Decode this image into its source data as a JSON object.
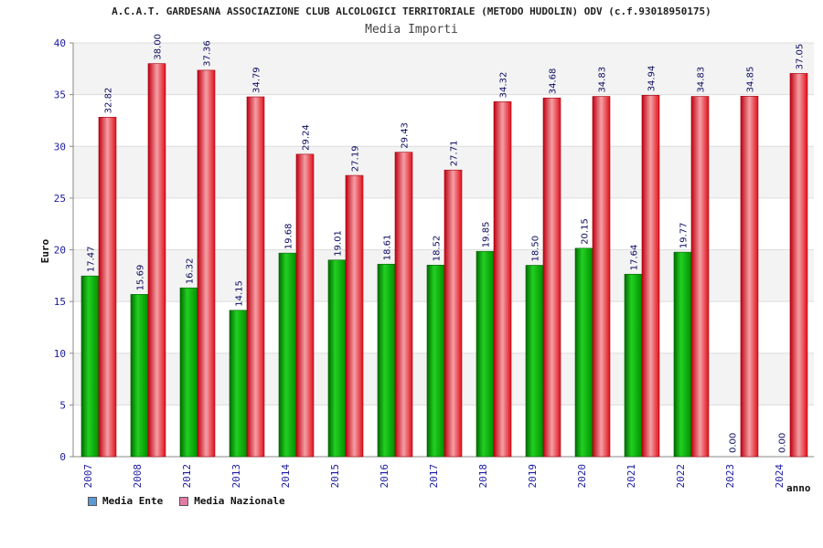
{
  "header": {
    "title": "A.C.A.T. GARDESANA ASSOCIAZIONE CLUB ALCOLOGICI TERRITORIALE (METODO HUDOLIN) ODV (c.f.93018950175)",
    "subtitle": "Media Importi"
  },
  "legend": {
    "items": [
      {
        "label": "Media Ente",
        "color": "#5b9bd5"
      },
      {
        "label": "Media Nazionale",
        "color": "#e37ba6"
      }
    ]
  },
  "chart_data": {
    "type": "bar",
    "title": "Media Importi",
    "xlabel": "anno",
    "ylabel": "Euro",
    "ylim": [
      0,
      40
    ],
    "yticks": [
      0,
      5,
      10,
      15,
      20,
      25,
      30,
      35,
      40
    ],
    "grid": true,
    "legend_position": "bottom-left",
    "categories": [
      "2007",
      "2008",
      "2012",
      "2013",
      "2014",
      "2015",
      "2016",
      "2017",
      "2018",
      "2019",
      "2020",
      "2021",
      "2022",
      "2023",
      "2024"
    ],
    "series": [
      {
        "name": "Media Ente",
        "color": "#00a000",
        "values": [
          17.47,
          15.69,
          16.32,
          14.15,
          19.68,
          19.01,
          18.61,
          18.52,
          19.85,
          18.5,
          20.15,
          17.64,
          19.77,
          0.0,
          0.0
        ],
        "labels": [
          "17.47",
          "15.69",
          "16.32",
          "14.15",
          "19.68",
          "19.01",
          "18.61",
          "18.52",
          "19.85",
          "18.50",
          "20.15",
          "17.64",
          "19.77",
          "0.00",
          "0.00"
        ]
      },
      {
        "name": "Media Nazionale",
        "color": "#e0101a",
        "values": [
          32.82,
          38.0,
          37.36,
          34.79,
          29.24,
          27.19,
          29.43,
          27.71,
          34.32,
          34.68,
          34.83,
          34.94,
          34.83,
          34.85,
          37.05
        ],
        "labels": [
          "32.82",
          "38.00",
          "37.36",
          "34.79",
          "29.24",
          "27.19",
          "29.43",
          "27.71",
          "34.32",
          "34.68",
          "34.83",
          "34.94",
          "34.83",
          "34.85",
          "37.05"
        ]
      }
    ]
  }
}
